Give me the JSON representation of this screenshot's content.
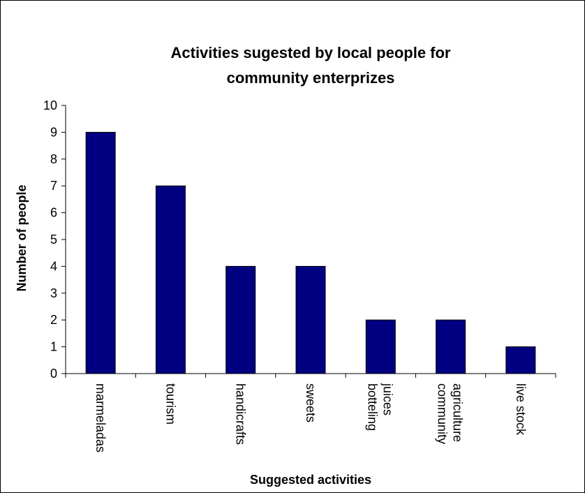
{
  "chart_data": {
    "type": "bar",
    "title_lines": [
      "Activities sugested by local people for",
      "community enterprizes"
    ],
    "xlabel": "Suggested activities",
    "ylabel": "Number of people",
    "categories": [
      [
        "marmeladas"
      ],
      [
        "tourism"
      ],
      [
        "handicrafts"
      ],
      [
        "sweets"
      ],
      [
        "botteling",
        "juices"
      ],
      [
        "community",
        "agriculture"
      ],
      [
        "live stock"
      ]
    ],
    "values": [
      9,
      7,
      4,
      4,
      2,
      2,
      1
    ],
    "ylim": [
      0,
      10
    ],
    "yticks": [
      0,
      1,
      2,
      3,
      4,
      5,
      6,
      7,
      8,
      9,
      10
    ],
    "grid": false,
    "legend": "none",
    "colors": {
      "bar_fill": "#000080",
      "bar_stroke": "#000000",
      "axis": "#000000",
      "text": "#000000",
      "background": "#ffffff"
    }
  }
}
